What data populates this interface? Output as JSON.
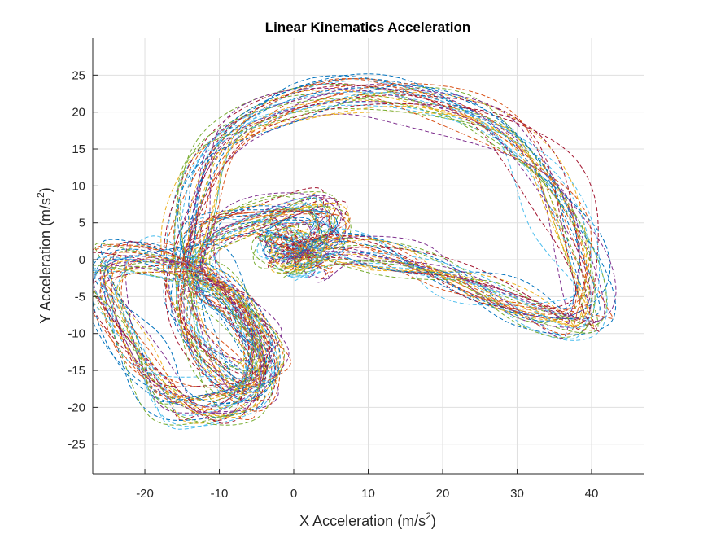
{
  "chart_data": {
    "type": "line",
    "title": "Linear Kinematics Acceleration",
    "xlabel": "X Acceleration (m/s",
    "ylabel": "Y Acceleration (m/s",
    "label_exponent": "2",
    "label_close": ")",
    "xlim": [
      -27,
      47
    ],
    "ylim": [
      -29,
      30
    ],
    "xticks": [
      "-20",
      "-10",
      "0",
      "10",
      "20",
      "30",
      "40"
    ],
    "yticks": [
      "25",
      "20",
      "15",
      "10",
      "5",
      "0",
      "-5",
      "-10",
      "-15",
      "-20",
      "-25"
    ],
    "grid": true,
    "line_style": "dashed",
    "colors": [
      "#0072BD",
      "#D95319",
      "#EDB120",
      "#7E2F8E",
      "#77AC30",
      "#4DBEEE",
      "#A2142F"
    ],
    "series_count": 34,
    "mean_path": [
      [
        0,
        0
      ],
      [
        6,
        1.5
      ],
      [
        14,
        -0.5
      ],
      [
        22,
        -3
      ],
      [
        30,
        -6
      ],
      [
        38,
        -8
      ],
      [
        40,
        -6
      ],
      [
        38,
        3
      ],
      [
        33,
        13
      ],
      [
        25,
        20
      ],
      [
        12,
        23
      ],
      [
        0,
        21
      ],
      [
        -10,
        15
      ],
      [
        -14,
        5
      ],
      [
        -15,
        -5
      ],
      [
        -12,
        -13
      ],
      [
        -6,
        -18
      ],
      [
        -4,
        -12
      ],
      [
        -10,
        -3
      ],
      [
        -16,
        0
      ],
      [
        -24,
        0
      ],
      [
        -26,
        -4
      ],
      [
        -22,
        -12
      ],
      [
        -17,
        -18
      ],
      [
        -12,
        -20
      ],
      [
        -6,
        -19
      ],
      [
        -4,
        -14
      ],
      [
        -8,
        -6
      ],
      [
        -13,
        -2
      ],
      [
        -12,
        3
      ],
      [
        -4,
        5.5
      ],
      [
        4,
        7
      ],
      [
        5,
        4
      ],
      [
        0,
        0.5
      ],
      [
        -3,
        1
      ],
      [
        -2,
        3
      ],
      [
        1,
        3
      ],
      [
        2,
        1
      ],
      [
        0,
        0
      ]
    ]
  }
}
